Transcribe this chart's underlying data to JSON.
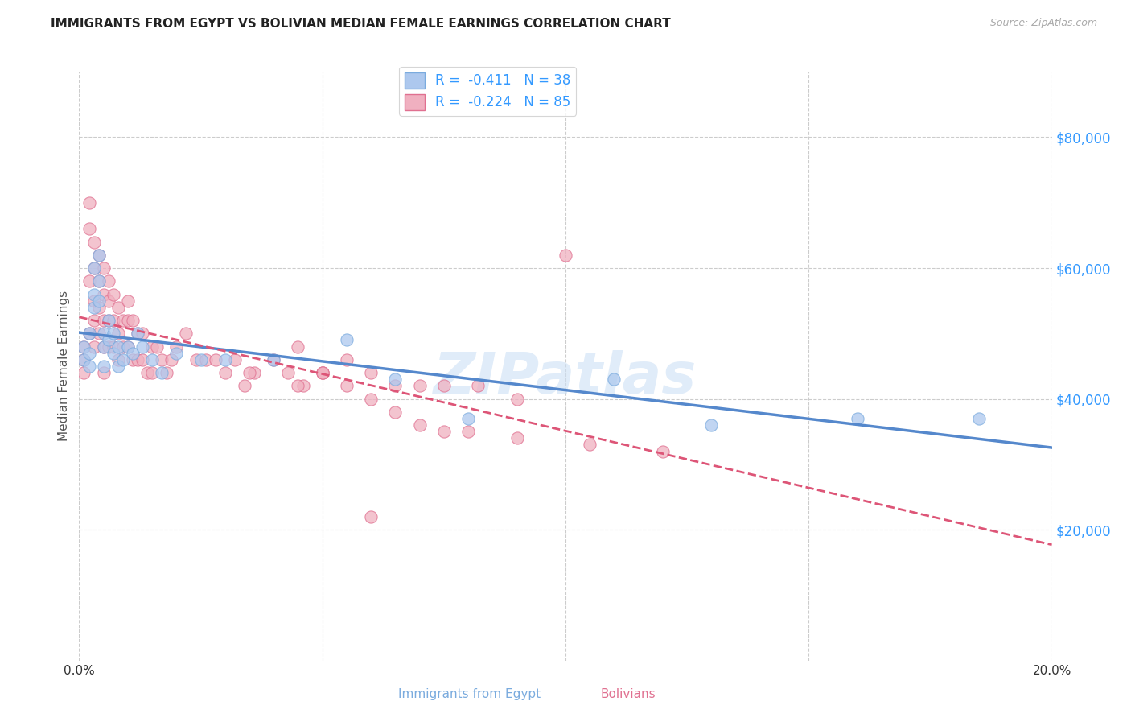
{
  "title": "IMMIGRANTS FROM EGYPT VS BOLIVIAN MEDIAN FEMALE EARNINGS CORRELATION CHART",
  "source": "Source: ZipAtlas.com",
  "ylabel": "Median Female Earnings",
  "xlim": [
    0.0,
    0.2
  ],
  "ylim": [
    0,
    90000
  ],
  "yticks": [
    20000,
    40000,
    60000,
    80000
  ],
  "ytick_labels": [
    "$20,000",
    "$40,000",
    "$60,000",
    "$80,000"
  ],
  "xticks": [
    0.0,
    0.05,
    0.1,
    0.15,
    0.2
  ],
  "xtick_labels": [
    "0.0%",
    "",
    "",
    "",
    "20.0%"
  ],
  "color_egypt": "#adc8ee",
  "color_bolivia": "#f0b0c0",
  "edge_color_egypt": "#7aabde",
  "edge_color_bolivia": "#e07090",
  "trend_color_egypt": "#5588cc",
  "trend_color_bolivia": "#dd5577",
  "background_color": "#ffffff",
  "grid_color": "#cccccc",
  "title_color": "#222222",
  "axis_label_color": "#555555",
  "ytick_color": "#3399ff",
  "xtick_color": "#333333",
  "source_color": "#aaaaaa",
  "legend_text_color": "#223388",
  "legend_rn_color": "#3399ff",
  "watermark_color": "#cce0f5",
  "egypt_scatter_x": [
    0.001,
    0.001,
    0.002,
    0.002,
    0.002,
    0.003,
    0.003,
    0.003,
    0.004,
    0.004,
    0.004,
    0.005,
    0.005,
    0.005,
    0.006,
    0.006,
    0.007,
    0.007,
    0.008,
    0.008,
    0.009,
    0.01,
    0.011,
    0.012,
    0.013,
    0.015,
    0.017,
    0.02,
    0.025,
    0.03,
    0.04,
    0.055,
    0.065,
    0.08,
    0.11,
    0.13,
    0.16,
    0.185
  ],
  "egypt_scatter_y": [
    48000,
    46000,
    50000,
    47000,
    45000,
    60000,
    56000,
    54000,
    62000,
    58000,
    55000,
    50000,
    48000,
    45000,
    52000,
    49000,
    50000,
    47000,
    48000,
    45000,
    46000,
    48000,
    47000,
    50000,
    48000,
    46000,
    44000,
    47000,
    46000,
    46000,
    46000,
    49000,
    43000,
    37000,
    43000,
    36000,
    37000,
    37000
  ],
  "bolivia_scatter_x": [
    0.001,
    0.001,
    0.001,
    0.002,
    0.002,
    0.002,
    0.002,
    0.003,
    0.003,
    0.003,
    0.003,
    0.003,
    0.004,
    0.004,
    0.004,
    0.004,
    0.005,
    0.005,
    0.005,
    0.005,
    0.005,
    0.006,
    0.006,
    0.006,
    0.006,
    0.007,
    0.007,
    0.007,
    0.008,
    0.008,
    0.008,
    0.009,
    0.009,
    0.01,
    0.01,
    0.01,
    0.011,
    0.011,
    0.012,
    0.012,
    0.013,
    0.013,
    0.014,
    0.015,
    0.015,
    0.016,
    0.017,
    0.018,
    0.019,
    0.02,
    0.022,
    0.024,
    0.026,
    0.028,
    0.03,
    0.032,
    0.034,
    0.036,
    0.04,
    0.043,
    0.046,
    0.05,
    0.055,
    0.06,
    0.065,
    0.07,
    0.075,
    0.082,
    0.09,
    0.1,
    0.06,
    0.035,
    0.045,
    0.05,
    0.045,
    0.05,
    0.055,
    0.06,
    0.065,
    0.07,
    0.075,
    0.08,
    0.09,
    0.105,
    0.12
  ],
  "bolivia_scatter_y": [
    48000,
    46000,
    44000,
    70000,
    66000,
    58000,
    50000,
    64000,
    60000,
    55000,
    52000,
    48000,
    62000,
    58000,
    54000,
    50000,
    60000,
    56000,
    52000,
    48000,
    44000,
    58000,
    55000,
    52000,
    48000,
    56000,
    52000,
    48000,
    54000,
    50000,
    46000,
    52000,
    48000,
    55000,
    52000,
    48000,
    52000,
    46000,
    50000,
    46000,
    50000,
    46000,
    44000,
    48000,
    44000,
    48000,
    46000,
    44000,
    46000,
    48000,
    50000,
    46000,
    46000,
    46000,
    44000,
    46000,
    42000,
    44000,
    46000,
    44000,
    42000,
    44000,
    46000,
    44000,
    42000,
    42000,
    42000,
    42000,
    40000,
    62000,
    22000,
    44000,
    42000,
    44000,
    48000,
    44000,
    42000,
    40000,
    38000,
    36000,
    35000,
    35000,
    34000,
    33000,
    32000
  ]
}
